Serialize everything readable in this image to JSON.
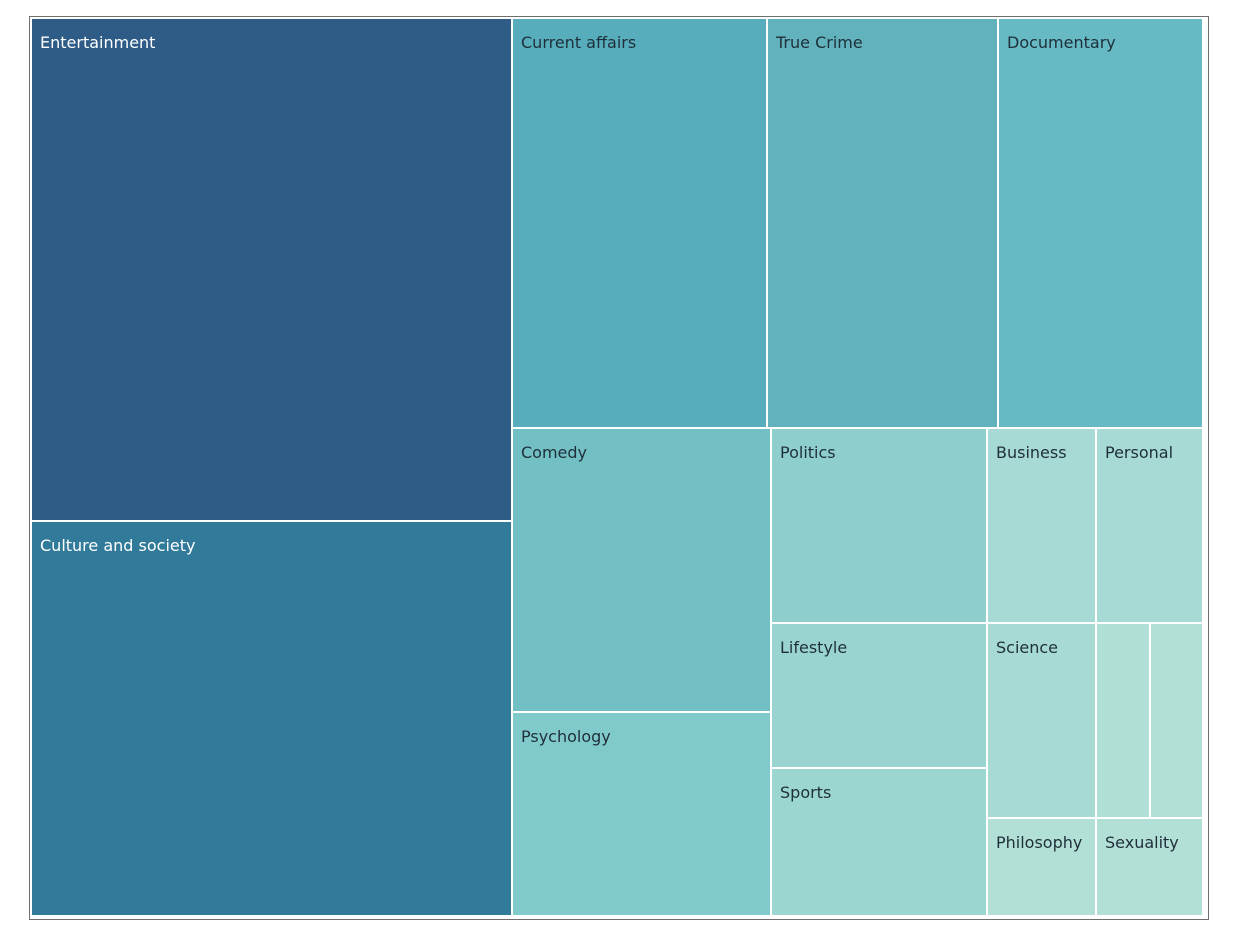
{
  "chart_data": {
    "type": "treemap",
    "colors": {
      "Entertainment": "#2e5c87",
      "Culture and society": "#327a99",
      "Current affairs": "#57adbc",
      "True Crime": "#61b2bd",
      "Documentary": "#67bac4",
      "Comedy": "#72bfc4",
      "Psychology": "#80cacb",
      "Politics": "#8ecfce",
      "Lifestyle": "#99d4d0",
      "Sports": "#9cd6d0",
      "Business": "#a7dad4",
      "Personal": "#a7dad4",
      "Science": "#a6dad3",
      "Philosophy": "#b2e0d6",
      "Sexuality": "#b2e0d6",
      "unlabeled_1": "#b0dfd5",
      "unlabeled_2": "#b2e0d6"
    },
    "groups": [
      {
        "label": "Entertainment",
        "value": 24.1,
        "children": [
          {
            "label": "Entertainment",
            "value": 24.1,
            "light": true
          }
        ]
      },
      {
        "label": "Culture and society",
        "value": 19.0,
        "children": [
          {
            "label": "Culture and society",
            "value": 19.0,
            "light": true
          }
        ]
      },
      {
        "label": "Current affairs",
        "value": 10.4,
        "children": [
          {
            "label": "Current affairs",
            "value": 10.4
          }
        ]
      },
      {
        "label": "True Crime",
        "value": 9.3,
        "children": [
          {
            "label": "True Crime",
            "value": 9.3
          }
        ]
      },
      {
        "label": "Documentary",
        "value": 8.3,
        "children": [
          {
            "label": "Documentary",
            "value": 8.3
          }
        ]
      },
      {
        "label": "Comedy",
        "value": 7.3,
        "children": [
          {
            "label": "Comedy",
            "value": 7.3
          }
        ]
      },
      {
        "label": "Psychology",
        "value": 5.1,
        "children": [
          {
            "label": "Psychology",
            "value": 5.1
          }
        ]
      },
      {
        "label": "Politics",
        "value": 4.2,
        "children": [
          {
            "label": "Politics",
            "value": 4.2
          }
        ]
      },
      {
        "label": "Lifestyle",
        "value": 3.1,
        "children": [
          {
            "label": "Lifestyle",
            "value": 3.1
          }
        ]
      },
      {
        "label": "Sports",
        "value": 3.2,
        "children": [
          {
            "label": "Sports",
            "value": 3.2
          }
        ]
      },
      {
        "label": "Business",
        "value": 2.1,
        "children": [
          {
            "label": "Business",
            "value": 2.1
          }
        ]
      },
      {
        "label": "Personal",
        "value": 2.1,
        "children": [
          {
            "label": "Personal",
            "value": 2.1
          }
        ]
      },
      {
        "label": "Science",
        "value": 2.1,
        "children": [
          {
            "label": "Science",
            "value": 2.1
          }
        ]
      },
      {
        "label": "Philosophy",
        "value": 1.0,
        "children": [
          {
            "label": "Philosophy",
            "value": 1.0
          }
        ]
      },
      {
        "label": "Sexuality",
        "value": 1.0,
        "children": [
          {
            "label": "Sexuality",
            "value": 1.0
          }
        ]
      },
      {
        "label": "",
        "value": 1.0,
        "children": [
          {
            "label": "",
            "value": 1.0,
            "color_key": "unlabeled_1"
          }
        ]
      },
      {
        "label": "",
        "value": 1.0,
        "children": [
          {
            "label": "",
            "value": 1.0,
            "color_key": "unlabeled_2"
          }
        ]
      }
    ]
  }
}
